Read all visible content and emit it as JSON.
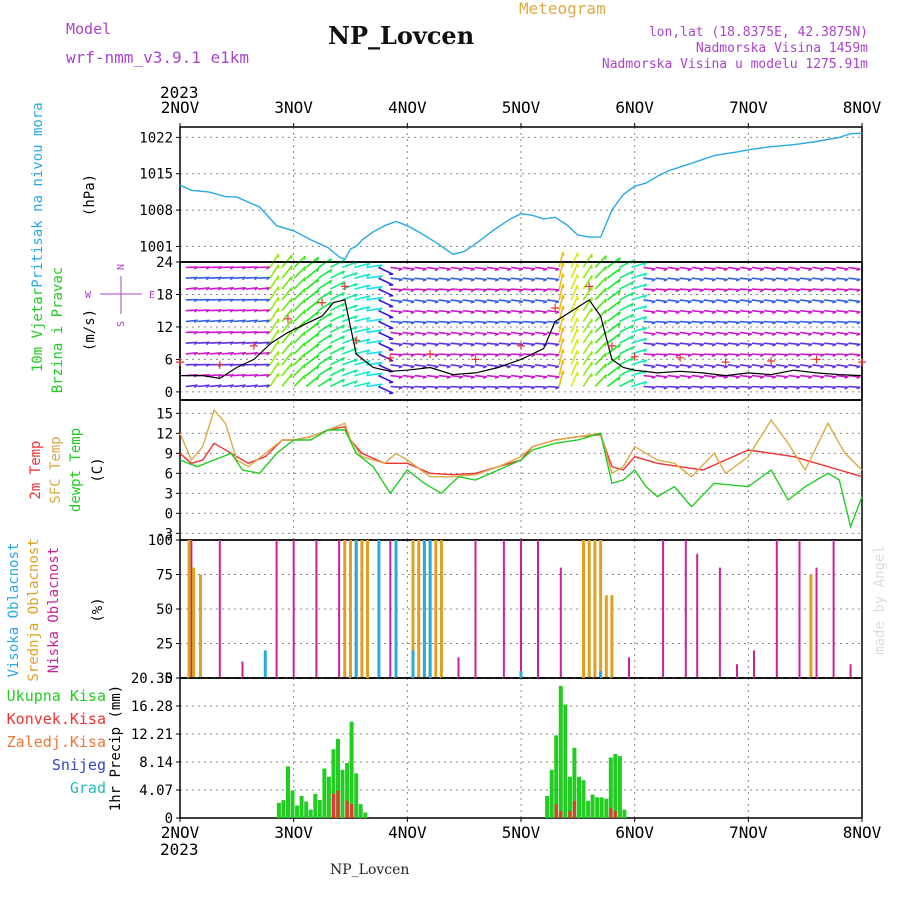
{
  "header": {
    "model_label": "Model",
    "model_name": "wrf-nmm_v3.9.1 e1km",
    "station": "NP_Lovcen",
    "meteogram_label": "Meteogram",
    "coords": "lon,lat (18.8375E, 42.3875N)",
    "elevation": "Nadmorska Visina 1459m",
    "model_elevation": "Nadmorska Visina u modelu 1275.91m",
    "year": "2023",
    "footer_station": "NP_Lovcen",
    "watermark": "made by Angel"
  },
  "colors": {
    "pressure": "#29a9e6",
    "temp2m": "#ee3333",
    "sfc_temp": "#ddaa44",
    "dewpoint": "#22cc22",
    "high_cloud": "#29a9e6",
    "mid_cloud": "#e0a020",
    "low_cloud": "#cc2299",
    "precip_total": "#22cc22",
    "precip_conv": "#ee3333",
    "frame": "#000000",
    "grid": "#888888",
    "header_purple": "#aa44cc",
    "header_gold": "#ddaa44"
  },
  "chart_data": [
    {
      "type": "line",
      "panel": "pressure",
      "ylabel_lines": [
        "Pritisak na nivou mora"
      ],
      "unit": "(hPa)",
      "x_categories": [
        "2NOV",
        "3NOV",
        "4NOV",
        "5NOV",
        "6NOV",
        "7NOV",
        "8NOV"
      ],
      "ylim": [
        998,
        1024
      ],
      "yticks": [
        1001,
        1008,
        1015,
        1022
      ],
      "series": [
        {
          "color_key": "pressure",
          "x": [
            0.0,
            0.1,
            0.25,
            0.4,
            0.5,
            0.7,
            0.85,
            1.0,
            1.15,
            1.3,
            1.4,
            1.45,
            1.5,
            1.55,
            1.6,
            1.7,
            1.8,
            1.9,
            2.0,
            2.1,
            2.25,
            2.4,
            2.5,
            2.6,
            2.75,
            2.9,
            3.0,
            3.1,
            3.2,
            3.3,
            3.4,
            3.5,
            3.6,
            3.7,
            3.8,
            3.9,
            4.0,
            4.1,
            4.2,
            4.3,
            4.5,
            4.7,
            4.9,
            5.0,
            5.2,
            5.4,
            5.6,
            5.8,
            5.9,
            6.0
          ],
          "values": [
            1012.8,
            1011.8,
            1011.5,
            1010.6,
            1010.5,
            1008.6,
            1005.0,
            1004.0,
            1002.3,
            1000.8,
            999.0,
            998.5,
            1000.5,
            1001.0,
            1002.2,
            1003.8,
            1005.0,
            1005.8,
            1005.0,
            1003.8,
            1001.8,
            999.5,
            1000.0,
            1001.5,
            1004.0,
            1006.2,
            1007.3,
            1007.0,
            1006.3,
            1006.6,
            1005.2,
            1003.2,
            1002.8,
            1002.8,
            1008.0,
            1011.0,
            1012.6,
            1013.2,
            1014.5,
            1015.6,
            1017.0,
            1018.5,
            1019.2,
            1019.6,
            1020.2,
            1020.6,
            1021.2,
            1022.0,
            1022.7,
            1022.8
          ]
        }
      ]
    },
    {
      "type": "line",
      "panel": "wind",
      "ylabel_lines": [
        "10m Vjetar",
        "Brzina i Pravac"
      ],
      "unit": "(m/s)",
      "compass": [
        "W",
        "E",
        "N",
        "S"
      ],
      "ylim": [
        -1.5,
        24
      ],
      "yticks": [
        0,
        6,
        12,
        18,
        24
      ],
      "series": [
        {
          "name": "speed",
          "color": "#000000",
          "x": [
            0.0,
            0.2,
            0.35,
            0.5,
            0.65,
            0.8,
            0.95,
            1.1,
            1.25,
            1.35,
            1.45,
            1.5,
            1.55,
            1.7,
            1.85,
            2.0,
            2.2,
            2.4,
            2.6,
            2.8,
            3.0,
            3.2,
            3.3,
            3.45,
            3.6,
            3.7,
            3.8,
            3.9,
            4.0,
            4.2,
            4.4,
            4.6,
            4.8,
            5.0,
            5.2,
            5.4,
            5.6,
            5.8,
            6.0
          ],
          "values": [
            3.0,
            3.0,
            2.5,
            4.5,
            6.0,
            9.0,
            11.0,
            12.5,
            14.0,
            16.5,
            17.0,
            12.0,
            7.0,
            4.5,
            3.8,
            4.0,
            4.5,
            3.2,
            3.5,
            4.5,
            6.0,
            8.0,
            13.0,
            15.0,
            17.0,
            14.0,
            6.0,
            4.5,
            4.0,
            3.5,
            3.8,
            3.5,
            3.0,
            3.5,
            3.2,
            4.0,
            3.5,
            3.2,
            3.0
          ]
        }
      ]
    },
    {
      "type": "line",
      "panel": "temperature",
      "ylabel_lines": [
        "2m Temp",
        "SFC Temp",
        "dewpt Temp"
      ],
      "unit": "(C)",
      "ylim": [
        -4,
        17
      ],
      "yticks": [
        -3,
        0,
        3,
        6,
        9,
        12,
        15
      ],
      "series": [
        {
          "name": "2m Temp",
          "color_key": "temp2m",
          "x": [
            0.0,
            0.1,
            0.2,
            0.3,
            0.45,
            0.6,
            0.75,
            0.9,
            1.0,
            1.15,
            1.3,
            1.45,
            1.5,
            1.6,
            1.8,
            2.0,
            2.2,
            2.4,
            2.6,
            2.8,
            3.0,
            3.1,
            3.3,
            3.5,
            3.7,
            3.8,
            3.9,
            4.0,
            4.2,
            4.4,
            4.6,
            4.8,
            5.0,
            5.2,
            5.4,
            5.6,
            5.8,
            6.0
          ],
          "values": [
            9.0,
            7.5,
            8.0,
            10.5,
            9.0,
            7.5,
            8.5,
            11.0,
            11.0,
            11.5,
            12.5,
            13.0,
            11.0,
            9.0,
            7.5,
            7.5,
            6.0,
            5.8,
            6.0,
            7.0,
            8.0,
            10.0,
            11.0,
            11.5,
            11.8,
            7.0,
            6.5,
            8.5,
            7.5,
            7.0,
            6.5,
            8.0,
            9.5,
            9.0,
            8.5,
            7.5,
            6.5,
            5.5
          ]
        },
        {
          "name": "SFC Temp",
          "color_key": "sfc_temp",
          "x": [
            0.0,
            0.1,
            0.2,
            0.3,
            0.4,
            0.5,
            0.6,
            0.75,
            0.9,
            1.0,
            1.15,
            1.3,
            1.45,
            1.5,
            1.6,
            1.8,
            1.9,
            2.0,
            2.2,
            2.4,
            2.6,
            2.8,
            3.0,
            3.1,
            3.3,
            3.5,
            3.7,
            3.8,
            3.9,
            4.0,
            4.2,
            4.35,
            4.5,
            4.7,
            4.8,
            5.0,
            5.2,
            5.35,
            5.5,
            5.7,
            5.85,
            6.0
          ],
          "values": [
            12.0,
            8.0,
            10.0,
            15.5,
            13.5,
            8.0,
            7.0,
            9.0,
            11.0,
            11.0,
            11.5,
            12.5,
            13.5,
            11.0,
            8.5,
            7.5,
            9.0,
            8.0,
            5.5,
            5.5,
            5.8,
            7.0,
            8.5,
            10.0,
            11.0,
            11.5,
            12.0,
            6.0,
            7.0,
            10.0,
            8.0,
            7.5,
            5.5,
            9.0,
            6.0,
            8.5,
            14.0,
            10.5,
            6.5,
            13.5,
            9.0,
            6.5
          ]
        },
        {
          "name": "dewpt Temp",
          "color_key": "dewpoint",
          "x": [
            0.0,
            0.15,
            0.3,
            0.45,
            0.55,
            0.7,
            0.85,
            1.0,
            1.15,
            1.3,
            1.45,
            1.55,
            1.7,
            1.85,
            2.0,
            2.15,
            2.3,
            2.45,
            2.6,
            2.8,
            3.0,
            3.1,
            3.3,
            3.5,
            3.7,
            3.8,
            3.9,
            4.0,
            4.1,
            4.2,
            4.35,
            4.5,
            4.7,
            5.0,
            5.2,
            5.35,
            5.5,
            5.7,
            5.8,
            5.9,
            6.0
          ],
          "values": [
            8.0,
            7.0,
            8.0,
            9.0,
            6.5,
            6.0,
            9.0,
            11.0,
            11.0,
            12.5,
            12.5,
            9.0,
            7.0,
            3.0,
            6.5,
            4.5,
            3.0,
            5.5,
            5.0,
            6.5,
            8.0,
            9.5,
            10.5,
            11.0,
            12.0,
            4.5,
            5.0,
            6.5,
            4.0,
            2.5,
            4.0,
            1.0,
            4.5,
            4.0,
            6.5,
            2.0,
            4.0,
            6.0,
            5.0,
            -2.0,
            2.5
          ]
        }
      ]
    },
    {
      "type": "bar",
      "panel": "cloud",
      "ylabel_lines": [
        "Visoka Oblacnost",
        "Srednja Oblacnost",
        "Niska Oblacnost"
      ],
      "unit": "(%)",
      "ylim": [
        0,
        100
      ],
      "yticks": [
        0,
        25,
        50,
        75,
        100
      ],
      "series": [
        {
          "name": "Niska Oblacnost",
          "color_key": "low_cloud",
          "x": [
            0.1,
            0.35,
            0.55,
            0.85,
            1.0,
            1.2,
            1.4,
            1.5,
            1.65,
            1.85,
            2.05,
            2.2,
            2.45,
            2.6,
            2.85,
            3.0,
            3.15,
            3.35,
            3.55,
            3.75,
            3.95,
            4.25,
            4.45,
            4.55,
            4.75,
            4.9,
            5.05,
            5.25,
            5.45,
            5.6,
            5.75,
            5.9
          ],
          "values": [
            100,
            100,
            12,
            100,
            100,
            100,
            100,
            100,
            95,
            100,
            100,
            100,
            15,
            100,
            100,
            100,
            100,
            80,
            35,
            20,
            15,
            100,
            100,
            90,
            80,
            10,
            20,
            100,
            100,
            80,
            100,
            10
          ]
        },
        {
          "name": "Srednja Oblacnost",
          "color_key": "mid_cloud",
          "x": [
            0.08,
            0.12,
            0.18,
            1.45,
            1.5,
            1.55,
            1.6,
            1.65,
            2.05,
            2.1,
            2.15,
            2.2,
            2.25,
            2.3,
            3.55,
            3.6,
            3.65,
            3.7,
            3.75,
            3.8,
            5.55
          ],
          "values": [
            100,
            80,
            75,
            100,
            100,
            100,
            100,
            100,
            100,
            100,
            100,
            100,
            100,
            100,
            100,
            100,
            100,
            100,
            60,
            60,
            75
          ]
        },
        {
          "name": "Visoka Oblacnost",
          "color_key": "high_cloud",
          "x": [
            0.75,
            1.55,
            1.75,
            1.9,
            2.05,
            2.15,
            2.2,
            3.0,
            3.7
          ],
          "values": [
            20,
            100,
            100,
            100,
            20,
            100,
            100,
            5,
            5
          ]
        }
      ]
    },
    {
      "type": "bar",
      "panel": "precip",
      "ylabel_lines": [
        "1hr Precip (mm)"
      ],
      "legend": [
        "Ukupna Kisa",
        "Konvek.Kisa",
        "Zaledj.Kisa",
        "Snijeg",
        "Grad"
      ],
      "ylim": [
        0,
        20.35
      ],
      "yticks": [
        0,
        4.07,
        8.14,
        12.21,
        16.28,
        20.35
      ],
      "x_categories": [
        "2NOV",
        "3NOV",
        "4NOV",
        "5NOV",
        "6NOV",
        "7NOV",
        "8NOV"
      ],
      "series": [
        {
          "name": "Ukupna Kisa",
          "color_key": "precip_total",
          "x": [
            0.87,
            0.91,
            0.95,
            0.99,
            1.03,
            1.07,
            1.11,
            1.15,
            1.19,
            1.23,
            1.27,
            1.31,
            1.35,
            1.39,
            1.43,
            1.47,
            1.51,
            1.55,
            1.59,
            1.63,
            3.23,
            3.27,
            3.31,
            3.35,
            3.39,
            3.43,
            3.47,
            3.51,
            3.55,
            3.59,
            3.63,
            3.67,
            3.71,
            3.75,
            3.79,
            3.83,
            3.87,
            3.91
          ],
          "values": [
            2.2,
            2.6,
            7.5,
            4.0,
            1.8,
            3.2,
            2.4,
            1.2,
            3.5,
            2.6,
            7.2,
            6.0,
            10.0,
            11.5,
            7.0,
            8.0,
            14.0,
            6.5,
            2.0,
            0.8,
            3.2,
            7.0,
            12.0,
            19.2,
            16.5,
            6.0,
            10.2,
            6.0,
            5.5,
            2.5,
            3.4,
            3.0,
            3.0,
            2.8,
            8.8,
            9.3,
            9.0,
            1.2
          ]
        },
        {
          "name": "Konvek.Kisa",
          "color_key": "precip_conv",
          "x": [
            1.35,
            1.39,
            1.47,
            1.51,
            3.31,
            3.35,
            3.43,
            3.47,
            3.79,
            3.83
          ],
          "values": [
            3.5,
            4.0,
            2.5,
            2.0,
            2.0,
            1.0,
            1.0,
            2.5,
            1.5,
            1.0
          ]
        }
      ]
    }
  ]
}
